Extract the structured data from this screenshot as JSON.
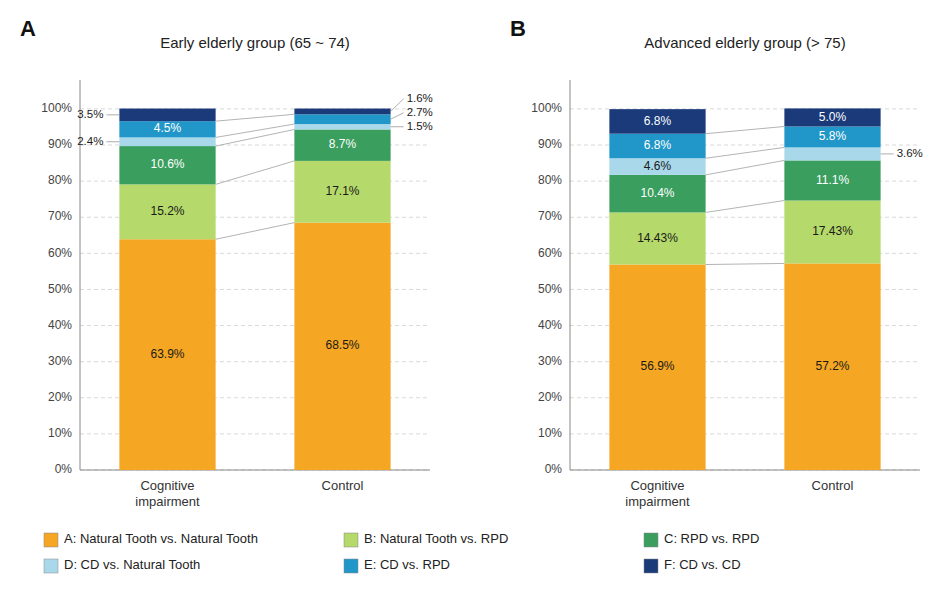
{
  "chart_data": [
    {
      "type": "bar",
      "stacked": true,
      "title": "Early elderly group (65 ~ 74)",
      "annotations": [
        "A"
      ],
      "categories": [
        "Cognitive\nimpairment",
        "Control"
      ],
      "series": [
        {
          "name": "A: Natural Tooth vs. Natural Tooth",
          "color": "#F5A623",
          "values": [
            63.9,
            68.5
          ],
          "value_labels": [
            "63.9%",
            "68.5%"
          ]
        },
        {
          "name": "B: Natural Tooth vs. RPD",
          "color": "#B5D96A",
          "values": [
            15.2,
            17.1
          ],
          "value_labels": [
            "15.2%",
            "17.1%"
          ]
        },
        {
          "name": "C:  RPD vs. RPD",
          "color": "#3A9E5F",
          "values": [
            10.6,
            8.7
          ],
          "value_labels": [
            "10.6%",
            "8.7%"
          ]
        },
        {
          "name": "D: CD vs. Natural Tooth",
          "color": "#A8D8EA",
          "values": [
            2.4,
            1.5
          ],
          "value_labels": [
            "2.4%",
            "1.5%"
          ]
        },
        {
          "name": "E: CD vs. RPD",
          "color": "#2196C8",
          "values": [
            4.5,
            2.7
          ],
          "value_labels": [
            "4.5%",
            "2.7%"
          ]
        },
        {
          "name": "F: CD vs. CD",
          "color": "#1A3A7A",
          "values": [
            3.5,
            1.6
          ],
          "value_labels": [
            "3.5%",
            "1.6%"
          ]
        }
      ],
      "ylim": [
        0,
        108
      ],
      "yticks": [
        {
          "value": 0,
          "label": "0%"
        },
        {
          "value": 10,
          "label": "10%"
        },
        {
          "value": 20,
          "label": "20%"
        },
        {
          "value": 30,
          "label": "30%"
        },
        {
          "value": 40,
          "label": "40%"
        },
        {
          "value": 50,
          "label": "50%"
        },
        {
          "value": 60,
          "label": "60%"
        },
        {
          "value": 70,
          "label": "70%"
        },
        {
          "value": 80,
          "label": "80%"
        },
        {
          "value": 90,
          "label": "90%"
        },
        {
          "value": 100,
          "label": "100%"
        }
      ],
      "grid": true,
      "data_labels": true,
      "legend": "bottom"
    },
    {
      "type": "bar",
      "stacked": true,
      "title": "Advanced elderly group (> 75)",
      "annotations": [
        "B"
      ],
      "categories": [
        "Cognitive\nimpairment",
        "Control"
      ],
      "series": [
        {
          "color": "#F5A623",
          "values": [
            56.9,
            57.2
          ],
          "value_labels": [
            "56.9%",
            "57.2%"
          ]
        },
        {
          "color": "#B5D96A",
          "values": [
            14.43,
            17.43
          ],
          "value_labels": [
            "14.43%",
            "17.43%"
          ]
        },
        {
          "color": "#3A9E5F",
          "values": [
            10.4,
            11.1
          ],
          "value_labels": [
            "10.4%",
            "11.1%"
          ]
        },
        {
          "color": "#A8D8EA",
          "values": [
            4.6,
            3.6
          ],
          "value_labels": [
            "4.6%",
            "3.6%"
          ]
        },
        {
          "color": "#2196C8",
          "values": [
            6.8,
            5.8
          ],
          "value_labels": [
            "6.8%",
            "5.8%"
          ]
        },
        {
          "color": "#1A3A7A",
          "values": [
            6.8,
            5.0
          ],
          "value_labels": [
            "6.8%",
            "5.0%"
          ]
        }
      ],
      "ylim": [
        0,
        108
      ],
      "yticks": [
        {
          "value": 0,
          "label": "0%"
        },
        {
          "value": 10,
          "label": "10%"
        },
        {
          "value": 20,
          "label": "20%"
        },
        {
          "value": 30,
          "label": "30%"
        },
        {
          "value": 40,
          "label": "40%"
        },
        {
          "value": 50,
          "label": "50%"
        },
        {
          "value": 60,
          "label": "60%"
        },
        {
          "value": 70,
          "label": "70%"
        },
        {
          "value": 80,
          "label": "80%"
        },
        {
          "value": 90,
          "label": "90%"
        },
        {
          "value": 100,
          "label": "100%"
        }
      ],
      "grid": true,
      "data_labels": true
    }
  ]
}
